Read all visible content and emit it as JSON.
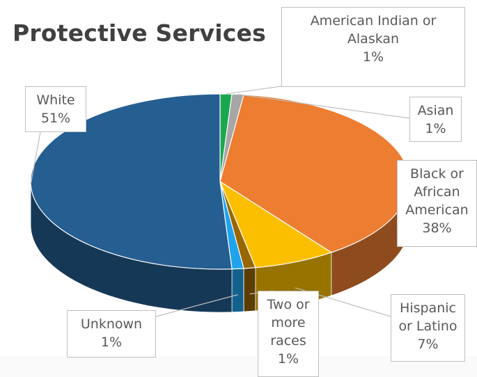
{
  "chart_data": {
    "type": "pie",
    "title": "Protective Services",
    "style": "3d",
    "slices": [
      {
        "label": "American Indian or Alaskan",
        "value": 1,
        "value_label": "1%",
        "color": "#1aa84f"
      },
      {
        "label": "Asian",
        "value": 1,
        "value_label": "1%",
        "color": "#a6a6a6"
      },
      {
        "label": "Black or African American",
        "value": 38,
        "value_label": "38%",
        "color": "#ed7d31"
      },
      {
        "label": "Hispanic or Latino",
        "value": 7,
        "value_label": "7%",
        "color": "#fbbf00"
      },
      {
        "label": "Two or more races",
        "value": 1,
        "value_label": "1%",
        "color": "#996600"
      },
      {
        "label": "Unknown",
        "value": 1,
        "value_label": "1%",
        "color": "#1fa3ec"
      },
      {
        "label": "White",
        "value": 51,
        "value_label": "51%",
        "color": "#255e91"
      }
    ]
  },
  "callouts": {
    "american_indian": {
      "lines": [
        "American Indian or",
        "Alaskan"
      ],
      "pct": "1%"
    },
    "asian": {
      "lines": [
        "Asian"
      ],
      "pct": "1%"
    },
    "black": {
      "lines": [
        "Black or",
        "African",
        "American"
      ],
      "pct": "38%"
    },
    "hispanic": {
      "lines": [
        "Hispanic",
        "or Latino"
      ],
      "pct": "7%"
    },
    "two_or_more": {
      "lines": [
        "Two or",
        "more",
        "races"
      ],
      "pct": "1%"
    },
    "unknown": {
      "lines": [
        "Unknown"
      ],
      "pct": "1%"
    },
    "white": {
      "lines": [
        "White"
      ],
      "pct": "51%"
    }
  }
}
